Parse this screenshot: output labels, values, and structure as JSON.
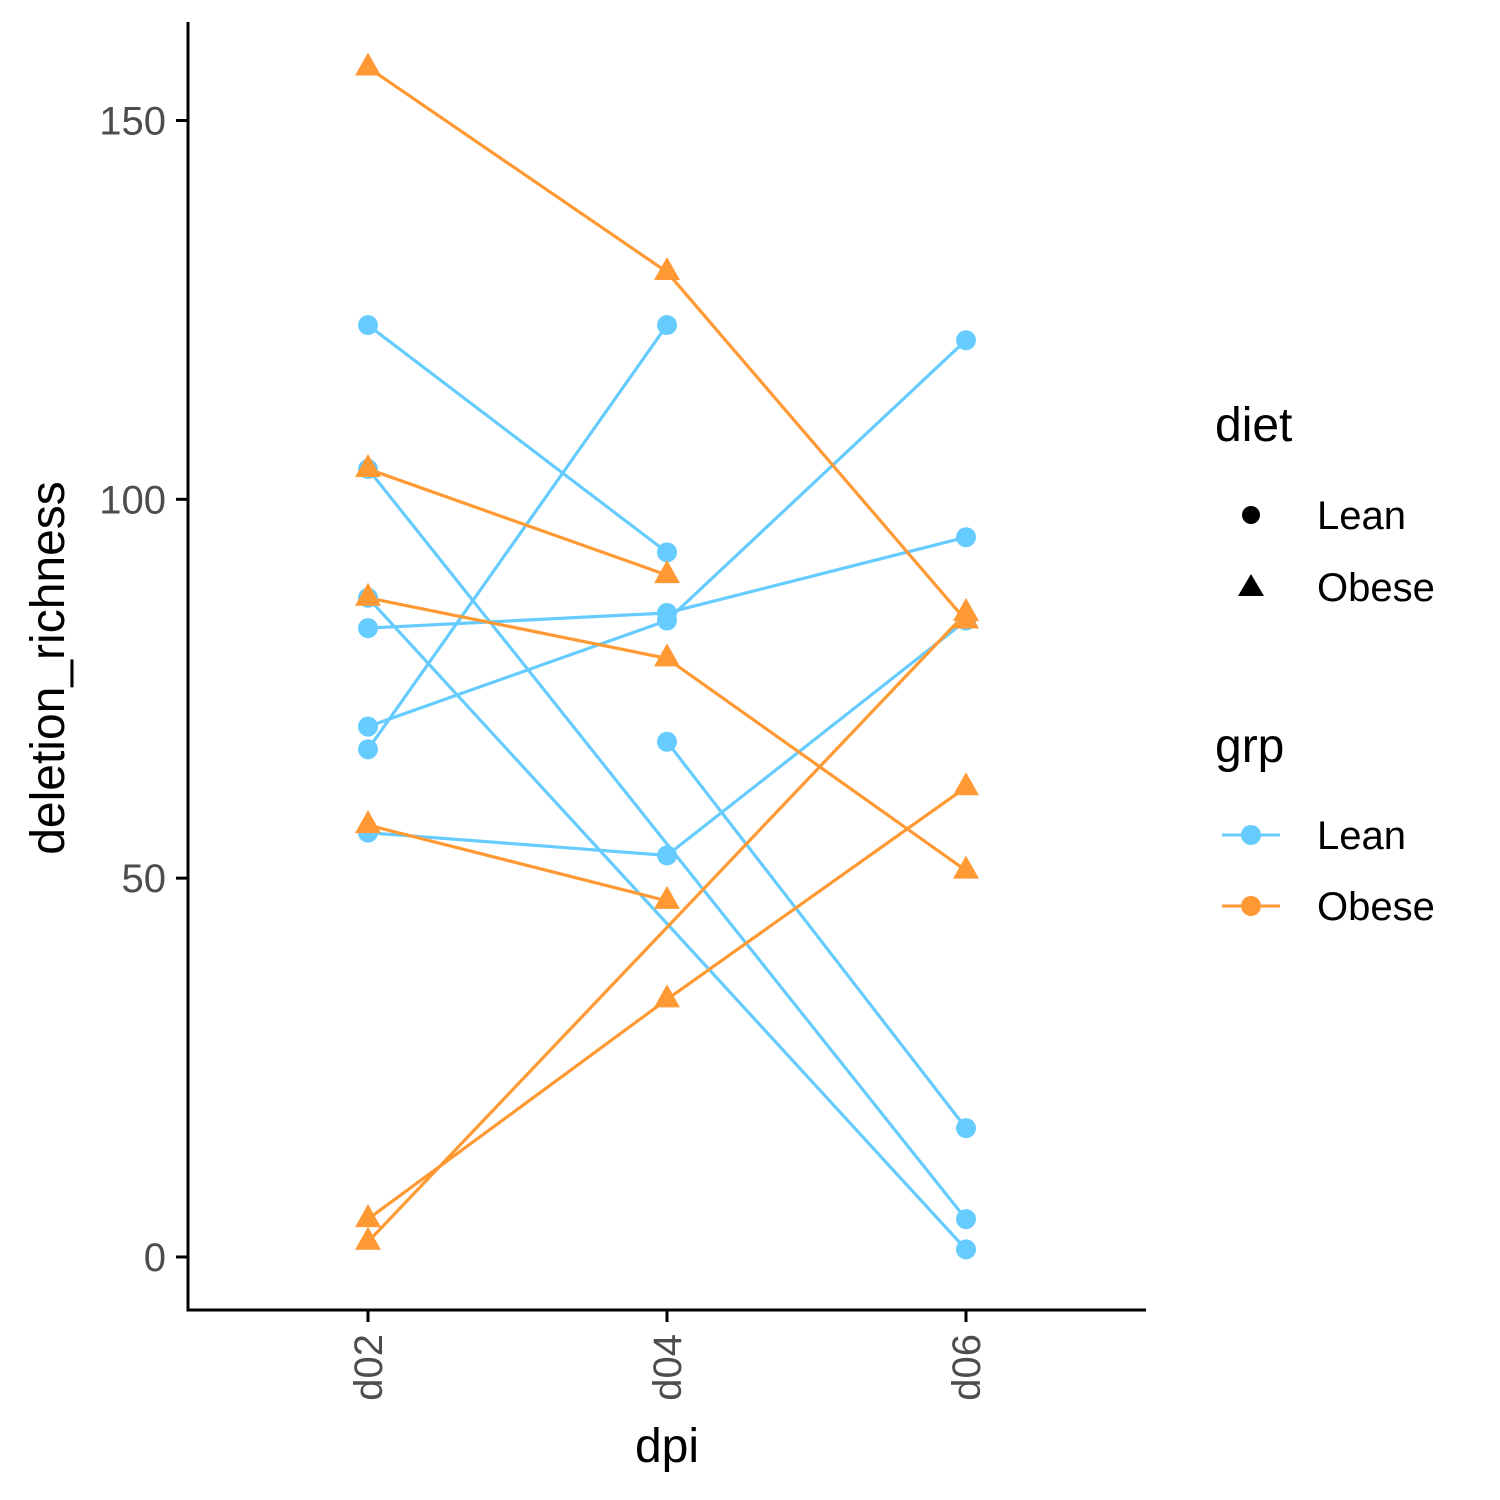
{
  "chart_data": {
    "type": "line",
    "xlabel": "dpi",
    "ylabel": "deletion_richness",
    "categories": [
      "d02",
      "d04",
      "d06"
    ],
    "ylim": [
      -7,
      163
    ],
    "yticks": [
      0,
      50,
      100,
      150
    ],
    "grid": false,
    "colors": {
      "Lean": "#66CCFF",
      "Obese": "#FF9933"
    },
    "legend": {
      "placement": "right",
      "diet": {
        "title": "diet",
        "items": [
          {
            "label": "Lean",
            "shape": "circle"
          },
          {
            "label": "Obese",
            "shape": "triangle"
          }
        ]
      },
      "grp": {
        "title": "grp",
        "items": [
          {
            "label": "Lean",
            "color": "#66CCFF"
          },
          {
            "label": "Obese",
            "color": "#FF9933"
          }
        ]
      }
    },
    "series": [
      {
        "grp": "Lean",
        "diet": "Lean",
        "points": [
          {
            "x": "d02",
            "y": 123
          },
          {
            "x": "d04",
            "y": 93
          }
        ]
      },
      {
        "grp": "Lean",
        "diet": "Lean",
        "points": [
          {
            "x": "d02",
            "y": 67
          },
          {
            "x": "d04",
            "y": 123
          }
        ]
      },
      {
        "grp": "Lean",
        "diet": "Lean",
        "points": [
          {
            "x": "d02",
            "y": 83
          },
          {
            "x": "d04",
            "y": 85
          },
          {
            "x": "d06",
            "y": 95
          }
        ]
      },
      {
        "grp": "Lean",
        "diet": "Lean",
        "points": [
          {
            "x": "d02",
            "y": 70
          },
          {
            "x": "d04",
            "y": 84
          },
          {
            "x": "d06",
            "y": 121
          }
        ]
      },
      {
        "grp": "Lean",
        "diet": "Lean",
        "points": [
          {
            "x": "d02",
            "y": 56
          },
          {
            "x": "d04",
            "y": 53
          },
          {
            "x": "d06",
            "y": 84
          }
        ]
      },
      {
        "grp": "Lean",
        "diet": "Lean",
        "points": [
          {
            "x": "d02",
            "y": 104
          },
          {
            "x": "d06",
            "y": 5
          }
        ]
      },
      {
        "grp": "Lean",
        "diet": "Lean",
        "points": [
          {
            "x": "d02",
            "y": 87
          },
          {
            "x": "d06",
            "y": 1
          }
        ]
      },
      {
        "grp": "Lean",
        "diet": "Lean",
        "points": [
          {
            "x": "d04",
            "y": 68
          },
          {
            "x": "d06",
            "y": 17
          }
        ]
      },
      {
        "grp": "Obese",
        "diet": "Obese",
        "points": [
          {
            "x": "d02",
            "y": 157
          },
          {
            "x": "d04",
            "y": 130
          },
          {
            "x": "d06",
            "y": 84
          }
        ]
      },
      {
        "grp": "Obese",
        "diet": "Obese",
        "points": [
          {
            "x": "d02",
            "y": 104
          },
          {
            "x": "d04",
            "y": 90
          }
        ]
      },
      {
        "grp": "Obese",
        "diet": "Obese",
        "points": [
          {
            "x": "d02",
            "y": 87
          },
          {
            "x": "d04",
            "y": 79
          },
          {
            "x": "d06",
            "y": 51
          }
        ]
      },
      {
        "grp": "Obese",
        "diet": "Obese",
        "points": [
          {
            "x": "d02",
            "y": 57
          },
          {
            "x": "d04",
            "y": 47
          }
        ]
      },
      {
        "grp": "Obese",
        "diet": "Obese",
        "points": [
          {
            "x": "d02",
            "y": 2
          },
          {
            "x": "d06",
            "y": 85
          }
        ]
      },
      {
        "grp": "Obese",
        "diet": "Obese",
        "points": [
          {
            "x": "d02",
            "y": 5
          },
          {
            "x": "d04",
            "y": 34
          },
          {
            "x": "d06",
            "y": 62
          }
        ]
      }
    ]
  }
}
